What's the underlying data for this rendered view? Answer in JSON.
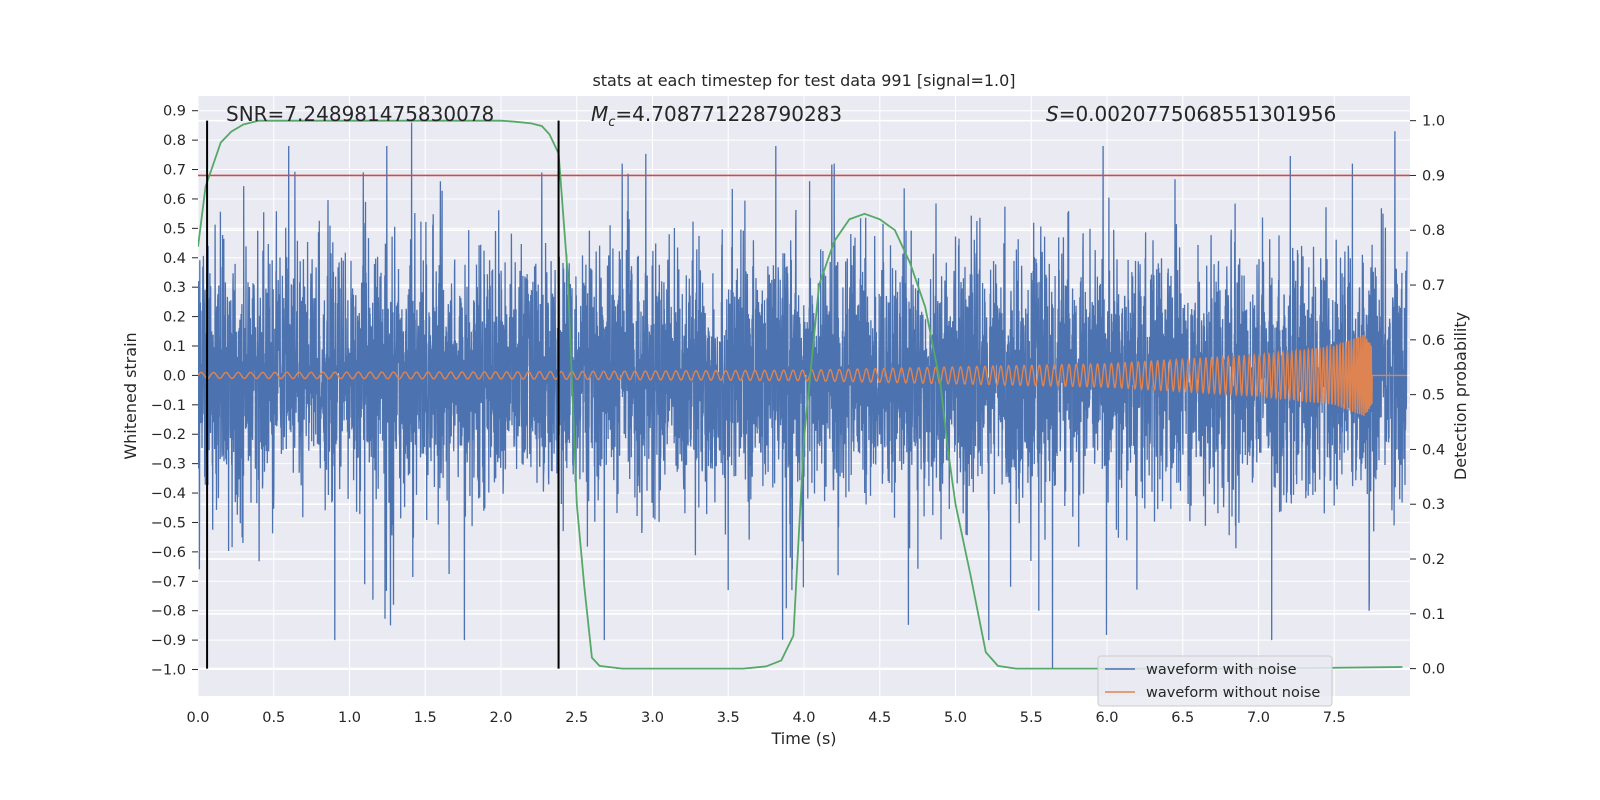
{
  "chart_data": {
    "type": "line",
    "title": "stats at each timestep for test data 991 [signal=1.0]",
    "xlabel": "Time (s)",
    "ylabel_left": "Whitened strain",
    "ylabel_right": "Detection probability",
    "xlim": [
      0.0,
      8.0
    ],
    "ylim_left": [
      -1.09,
      0.95
    ],
    "ylim_right": [
      -0.05,
      1.045
    ],
    "x_ticks": [
      "0.0",
      "0.5",
      "1.0",
      "1.5",
      "2.0",
      "2.5",
      "3.0",
      "3.5",
      "4.0",
      "4.5",
      "5.0",
      "5.5",
      "6.0",
      "6.5",
      "7.0",
      "7.5"
    ],
    "y_ticks_left": [
      "0.9",
      "0.8",
      "0.7",
      "0.6",
      "0.5",
      "0.4",
      "0.3",
      "0.2",
      "0.1",
      "0.0",
      "-0.1",
      "-0.2",
      "-0.3",
      "-0.4",
      "-0.5",
      "-0.6",
      "-0.7",
      "-0.8",
      "-0.9",
      "-1.0"
    ],
    "y_ticks_right": [
      "1.0",
      "0.9",
      "0.8",
      "0.7",
      "0.6",
      "0.5",
      "0.4",
      "0.3",
      "0.2",
      "0.1",
      "0.0"
    ],
    "grid": true,
    "legend_position": "bottom-right",
    "colors": {
      "noise": "#4c72b0",
      "signal": "#dd8452",
      "probability": "#55a868",
      "threshold": "#c44e52",
      "markers": "#000000",
      "plot_bg": "#eaeaf2",
      "grid": "#ffffff"
    },
    "annotations": {
      "snr": "SNR=7.248981475830078",
      "mc_symbol": "M",
      "mc_sub": "c",
      "mc_value": "=4.708771228790283",
      "s_symbol": "S",
      "s_value": "=0.0020775068551301956"
    },
    "series": [
      {
        "name": "waveform with noise",
        "axis": "left",
        "style": "noisy-strain",
        "envelope": {
          "typical_amplitude": 0.25,
          "min": -1.0,
          "max": 0.86
        },
        "peaks": [
          [
            1.41,
            0.86
          ],
          [
            2.27,
            0.69
          ],
          [
            4.2,
            0.72
          ],
          [
            7.62,
            0.72
          ],
          [
            7.9,
            0.83
          ],
          [
            1.6,
            0.66
          ],
          [
            2.8,
            0.72
          ]
        ],
        "troughs": [
          [
            1.27,
            -0.85
          ],
          [
            1.29,
            -0.78
          ],
          [
            5.64,
            -1.0
          ],
          [
            5.55,
            -0.8
          ],
          [
            7.73,
            -0.8
          ],
          [
            3.5,
            -0.73
          ],
          [
            1.1,
            -0.71
          ]
        ]
      },
      {
        "name": "waveform without noise",
        "axis": "left",
        "style": "chirp",
        "amplitude_points": [
          [
            0.0,
            0.01
          ],
          [
            2.0,
            0.012
          ],
          [
            4.0,
            0.018
          ],
          [
            6.0,
            0.04
          ],
          [
            7.0,
            0.07
          ],
          [
            7.5,
            0.1
          ],
          [
            7.7,
            0.14
          ],
          [
            7.75,
            0.1
          ]
        ],
        "merger_time": 7.75,
        "x_end": 7.98
      },
      {
        "name": "detection probability",
        "axis": "right",
        "points": [
          [
            0.0,
            0.77
          ],
          [
            0.05,
            0.88
          ],
          [
            0.1,
            0.92
          ],
          [
            0.15,
            0.96
          ],
          [
            0.22,
            0.98
          ],
          [
            0.3,
            0.993
          ],
          [
            0.4,
            1.0
          ],
          [
            1.0,
            1.0
          ],
          [
            1.5,
            1.0
          ],
          [
            2.0,
            1.0
          ],
          [
            2.1,
            0.998
          ],
          [
            2.2,
            0.995
          ],
          [
            2.27,
            0.99
          ],
          [
            2.32,
            0.975
          ],
          [
            2.38,
            0.94
          ],
          [
            2.44,
            0.72
          ],
          [
            2.5,
            0.3
          ],
          [
            2.55,
            0.15
          ],
          [
            2.6,
            0.02
          ],
          [
            2.65,
            0.005
          ],
          [
            2.8,
            0.0
          ],
          [
            3.6,
            0.0
          ],
          [
            3.75,
            0.004
          ],
          [
            3.85,
            0.015
          ],
          [
            3.93,
            0.06
          ],
          [
            4.0,
            0.42
          ],
          [
            4.1,
            0.7
          ],
          [
            4.2,
            0.78
          ],
          [
            4.3,
            0.82
          ],
          [
            4.4,
            0.83
          ],
          [
            4.5,
            0.82
          ],
          [
            4.6,
            0.8
          ],
          [
            4.7,
            0.74
          ],
          [
            4.8,
            0.66
          ],
          [
            4.9,
            0.52
          ],
          [
            4.95,
            0.4
          ],
          [
            5.0,
            0.3
          ],
          [
            5.1,
            0.17
          ],
          [
            5.2,
            0.03
          ],
          [
            5.28,
            0.005
          ],
          [
            5.4,
            0.0
          ],
          [
            7.0,
            0.0
          ],
          [
            7.95,
            0.003
          ]
        ]
      }
    ],
    "threshold": {
      "axis": "right",
      "value": 0.9
    },
    "vertical_markers": [
      0.06,
      2.38
    ]
  }
}
